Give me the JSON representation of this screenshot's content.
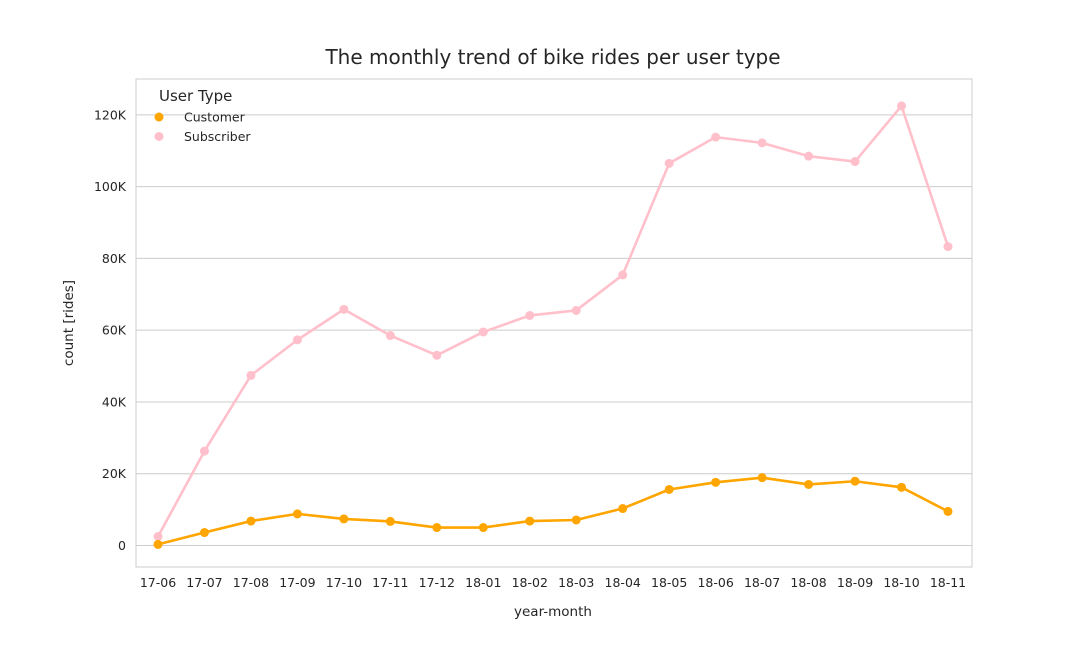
{
  "chart_data": {
    "type": "line",
    "title": "The monthly trend of bike rides per user type",
    "xlabel": "year-month",
    "ylabel": "count [rides]",
    "categories": [
      "17-06",
      "17-07",
      "17-08",
      "17-09",
      "17-10",
      "17-11",
      "17-12",
      "18-01",
      "18-02",
      "18-03",
      "18-04",
      "18-05",
      "18-06",
      "18-07",
      "18-08",
      "18-09",
      "18-10",
      "18-11"
    ],
    "ylim": [
      -6000,
      130000
    ],
    "yticks": [
      0,
      20000,
      40000,
      60000,
      80000,
      100000,
      120000
    ],
    "ytick_labels": [
      "0",
      "20K",
      "40K",
      "60K",
      "80K",
      "100K",
      "120K"
    ],
    "grid": "horizontal",
    "legend": {
      "title": "User Type",
      "placement": "top-left"
    },
    "series": [
      {
        "name": "Customer",
        "color": "#FFA500",
        "values": [
          300,
          3600,
          6800,
          8800,
          7400,
          6700,
          5000,
          5000,
          6800,
          7100,
          10300,
          15600,
          17600,
          18900,
          17000,
          17900,
          16200,
          9500
        ]
      },
      {
        "name": "Subscriber",
        "color": "#FFC0CB",
        "values": [
          2500,
          26300,
          47400,
          57300,
          65800,
          58500,
          53000,
          59500,
          64100,
          65500,
          75400,
          106500,
          113800,
          112200,
          108500,
          107000,
          122500,
          83300
        ]
      }
    ]
  }
}
